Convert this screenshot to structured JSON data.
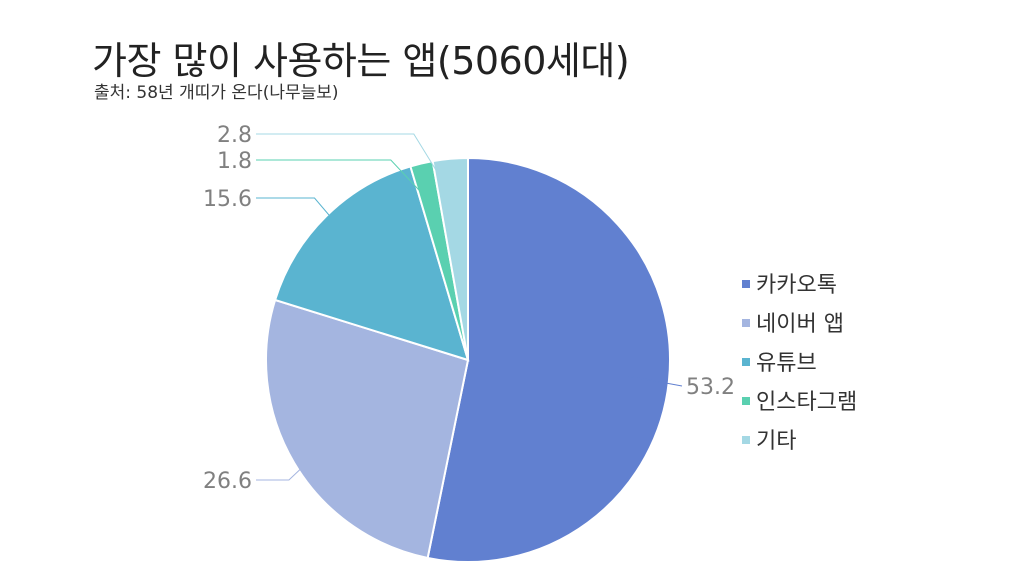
{
  "title": "가장 많이 사용하는 앱(5060세대)",
  "source": "출처: 58년 개띠가 온다(나무늘보)",
  "chart_data": {
    "type": "pie",
    "categories": [
      "카카오톡",
      "네이버 앱",
      "유튜브",
      "인스타그램",
      "기타"
    ],
    "values": [
      53.2,
      26.6,
      15.6,
      1.8,
      2.8
    ],
    "colors": [
      "#6180d0",
      "#a4b5e0",
      "#5ab4d0",
      "#5ad0b0",
      "#a4d8e4"
    ],
    "data_labels": [
      "53.2",
      "26.6",
      "15.6",
      "1.8",
      "2.8"
    ],
    "legend_position": "right"
  }
}
